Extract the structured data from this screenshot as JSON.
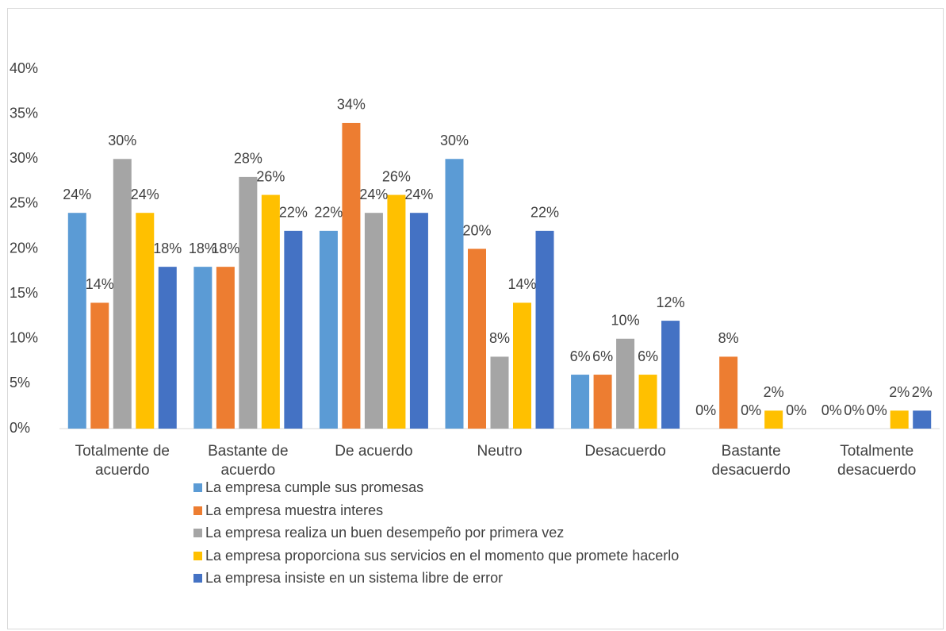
{
  "chart_data": {
    "type": "bar",
    "categories": [
      "Totalmente de acuerdo",
      "Bastante de acuerdo",
      "De acuerdo",
      "Neutro",
      "Desacuerdo",
      "Bastante desacuerdo",
      "Totalmente desacuerdo"
    ],
    "series": [
      {
        "name": "La empresa cumple sus promesas",
        "color": "#5b9bd5",
        "values": [
          24,
          18,
          22,
          30,
          6,
          0,
          0
        ],
        "value_labels": [
          "24%",
          "18%",
          "22%",
          "30%",
          "6%",
          "0%",
          "0%"
        ]
      },
      {
        "name": "La empresa muestra interes",
        "color": "#ed7d31",
        "values": [
          14,
          18,
          34,
          20,
          6,
          8,
          0
        ],
        "value_labels": [
          "14%",
          "18%",
          "34%",
          "20%",
          "6%",
          "8%",
          "0%"
        ]
      },
      {
        "name": "La empresa realiza un buen desempeño por primera vez",
        "color": "#a5a5a5",
        "values": [
          30,
          28,
          24,
          8,
          10,
          0,
          0
        ],
        "value_labels": [
          "30%",
          "28%",
          "24%",
          "8%",
          "10%",
          "0%",
          "0%"
        ]
      },
      {
        "name": "La empresa proporciona sus servicios en el momento que promete hacerlo",
        "color": "#ffc000",
        "values": [
          24,
          26,
          26,
          14,
          6,
          2,
          2
        ],
        "value_labels": [
          "24%",
          "26%",
          "26%",
          "14%",
          "6%",
          "2%",
          "2%"
        ]
      },
      {
        "name": "La empresa insiste en un sistema libre de error",
        "color": "#4472c4",
        "values": [
          18,
          22,
          24,
          22,
          12,
          0,
          2
        ],
        "value_labels": [
          "18%",
          "22%",
          "24%",
          "22%",
          "12%",
          "0%",
          "2%"
        ]
      }
    ],
    "ylim": [
      0,
      40
    ],
    "yticks": [
      {
        "value": 0,
        "label": "0%"
      },
      {
        "value": 5,
        "label": "5%"
      },
      {
        "value": 10,
        "label": "10%"
      },
      {
        "value": 15,
        "label": "15%"
      },
      {
        "value": 20,
        "label": "20%"
      },
      {
        "value": 25,
        "label": "25%"
      },
      {
        "value": 30,
        "label": "30%"
      },
      {
        "value": 35,
        "label": "35%"
      },
      {
        "value": 40,
        "label": "40%"
      }
    ],
    "grid": false,
    "legend": "bottom"
  }
}
